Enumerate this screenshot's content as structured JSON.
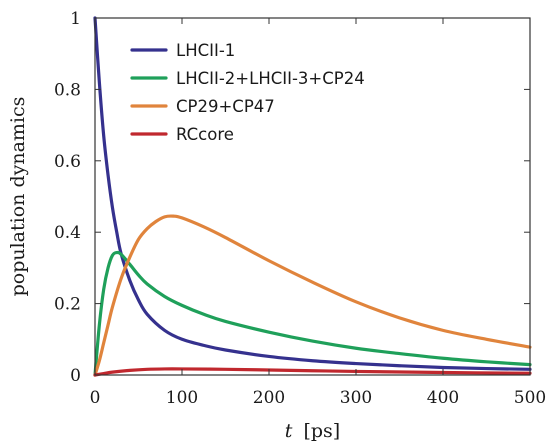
{
  "chart_data": {
    "type": "line",
    "title": "",
    "xlabel_italic": "t",
    "xlabel_unit": "[ps]",
    "ylabel": "population dynamics",
    "xlim": [
      0,
      500
    ],
    "ylim": [
      0,
      1
    ],
    "xticks": [
      0,
      100,
      200,
      300,
      400,
      500
    ],
    "yticks": [
      0,
      0.2,
      0.4,
      0.6,
      0.8,
      1
    ],
    "xtick_labels": [
      "0",
      "100",
      "200",
      "300",
      "400",
      "500"
    ],
    "ytick_labels": [
      "0",
      "0.2",
      "0.4",
      "0.6",
      "0.8",
      "1"
    ],
    "grid": false,
    "legend_position": "top-left",
    "series": [
      {
        "name": "LHCII-1",
        "color": "#35318e",
        "x": [
          0,
          5,
          10,
          15,
          20,
          25,
          30,
          40,
          50,
          60,
          80,
          100,
          125,
          150,
          200,
          250,
          300,
          350,
          400,
          450,
          500
        ],
        "y": [
          1.0,
          0.82,
          0.67,
          0.56,
          0.47,
          0.4,
          0.34,
          0.265,
          0.21,
          0.17,
          0.125,
          0.1,
          0.083,
          0.07,
          0.052,
          0.04,
          0.032,
          0.026,
          0.021,
          0.018,
          0.016
        ]
      },
      {
        "name": "LHCII-2+LHCII-3+CP24",
        "color": "#1fa05a",
        "x": [
          0,
          5,
          10,
          15,
          20,
          25,
          30,
          40,
          50,
          60,
          80,
          100,
          125,
          150,
          200,
          250,
          300,
          350,
          400,
          450,
          500
        ],
        "y": [
          0.0,
          0.14,
          0.24,
          0.3,
          0.335,
          0.343,
          0.338,
          0.31,
          0.28,
          0.255,
          0.22,
          0.195,
          0.17,
          0.15,
          0.12,
          0.095,
          0.075,
          0.06,
          0.047,
          0.037,
          0.029
        ]
      },
      {
        "name": "CP29+CP47",
        "color": "#e0843c",
        "x": [
          0,
          5,
          10,
          15,
          20,
          30,
          40,
          50,
          60,
          70,
          80,
          90,
          100,
          125,
          150,
          200,
          250,
          300,
          350,
          400,
          450,
          500
        ],
        "y": [
          0.0,
          0.04,
          0.09,
          0.14,
          0.19,
          0.27,
          0.33,
          0.38,
          0.41,
          0.43,
          0.443,
          0.445,
          0.44,
          0.415,
          0.385,
          0.32,
          0.26,
          0.205,
          0.16,
          0.125,
          0.1,
          0.078
        ]
      },
      {
        "name": "RCcore",
        "color": "#c0282e",
        "x": [
          0,
          10,
          20,
          40,
          60,
          80,
          100,
          150,
          200,
          250,
          300,
          400,
          500
        ],
        "y": [
          0.0,
          0.004,
          0.008,
          0.013,
          0.016,
          0.017,
          0.017,
          0.016,
          0.014,
          0.012,
          0.01,
          0.007,
          0.005
        ]
      }
    ]
  }
}
